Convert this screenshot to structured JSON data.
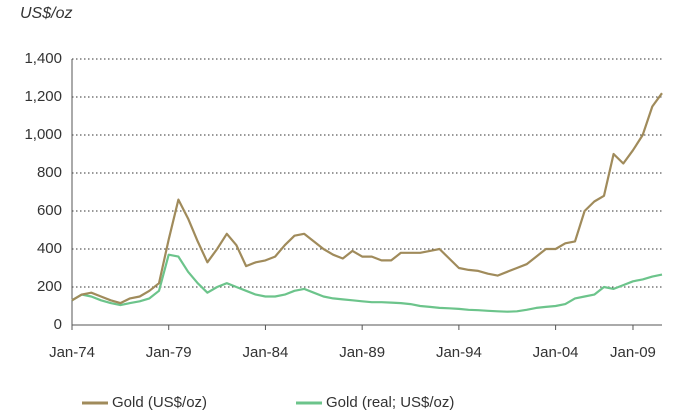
{
  "chart_data": {
    "type": "line",
    "ylabel": "US$/oz",
    "categories": [
      "Jan-74",
      null,
      null,
      null,
      null,
      null,
      null,
      null,
      null,
      null,
      "Jan-79",
      null,
      null,
      null,
      null,
      null,
      null,
      null,
      null,
      null,
      "Jan-84",
      null,
      null,
      null,
      null,
      null,
      null,
      null,
      null,
      null,
      "Jan-89",
      null,
      null,
      null,
      null,
      null,
      null,
      null,
      null,
      null,
      "Jan-94",
      null,
      null,
      null,
      null,
      null,
      null,
      null,
      null,
      null,
      "Jan-04",
      null,
      null,
      null,
      null,
      null,
      null,
      null,
      "Jan-09",
      null,
      null,
      null
    ],
    "series": [
      {
        "name": "Gold (US$/oz)",
        "color": "#a08b5b",
        "values": [
          130,
          160,
          170,
          150,
          130,
          115,
          140,
          150,
          180,
          220,
          450,
          660,
          560,
          440,
          330,
          400,
          480,
          420,
          310,
          330,
          340,
          360,
          420,
          470,
          480,
          440,
          400,
          370,
          350,
          390,
          360,
          360,
          340,
          340,
          380,
          380,
          380,
          390,
          400,
          350,
          300,
          290,
          285,
          270,
          260,
          280,
          300,
          320,
          360,
          400,
          400,
          430,
          440,
          600,
          650,
          680,
          900,
          850,
          920,
          1000,
          1150,
          1220
        ]
      },
      {
        "name": "Gold (real; US$/oz)",
        "color": "#6cc48b",
        "values": [
          130,
          160,
          150,
          130,
          115,
          105,
          115,
          125,
          140,
          180,
          370,
          360,
          280,
          220,
          170,
          200,
          220,
          200,
          180,
          160,
          150,
          150,
          160,
          180,
          190,
          170,
          150,
          140,
          135,
          130,
          125,
          120,
          120,
          118,
          115,
          110,
          100,
          95,
          90,
          88,
          85,
          80,
          78,
          75,
          72,
          70,
          72,
          80,
          90,
          95,
          100,
          110,
          140,
          150,
          160,
          200,
          190,
          210,
          230,
          240,
          255,
          265
        ]
      }
    ],
    "ylim": [
      0,
      1400
    ],
    "yticks": [
      0,
      200,
      400,
      600,
      800,
      {
        "value": 1000,
        "label": "1,000"
      },
      {
        "value": 1200,
        "label": "1,200"
      },
      {
        "value": 1400,
        "label": "1,400"
      }
    ],
    "grid": true,
    "legend": "bottom"
  }
}
